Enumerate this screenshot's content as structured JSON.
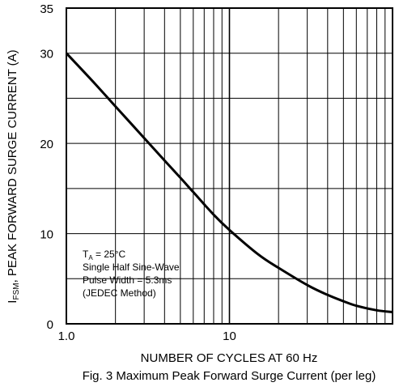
{
  "chart_data": {
    "type": "line",
    "title": "Fig. 3  Maximum Peak Forward Surge Current (per leg)",
    "xlabel": "NUMBER OF CYCLES AT 60 Hz",
    "ylabel": {
      "symbol": "I",
      "subscript": "FSM",
      "text": ", PEAK FORWARD SURGE CURRENT (A)"
    },
    "x_scale": "log",
    "xlim": [
      1,
      100
    ],
    "ylim": [
      0,
      35
    ],
    "x_tick_labels": [
      {
        "value": 1,
        "label": "1.0"
      },
      {
        "value": 10,
        "label": "10"
      }
    ],
    "y_ticks": [
      0,
      10,
      20,
      30,
      35
    ],
    "grid": true,
    "series": [
      {
        "x": [
          1,
          1.5,
          2,
          3,
          4,
          5,
          6,
          8,
          10,
          15,
          20,
          30,
          40,
          50,
          60,
          80,
          100
        ],
        "y": [
          30,
          26.6,
          24.1,
          20.6,
          18.1,
          16.2,
          14.6,
          12.1,
          10.4,
          7.7,
          6.2,
          4.3,
          3.2,
          2.5,
          2.0,
          1.5,
          1.3
        ]
      }
    ],
    "annotation": {
      "lines": [
        {
          "main": "T",
          "sub": "A",
          "rest": " = 25°C"
        },
        {
          "main": "Single Half Sine-Wave"
        },
        {
          "main": "Pulse Width = 5.3ms"
        },
        {
          "main": "(JEDEC Method)"
        }
      ]
    }
  }
}
